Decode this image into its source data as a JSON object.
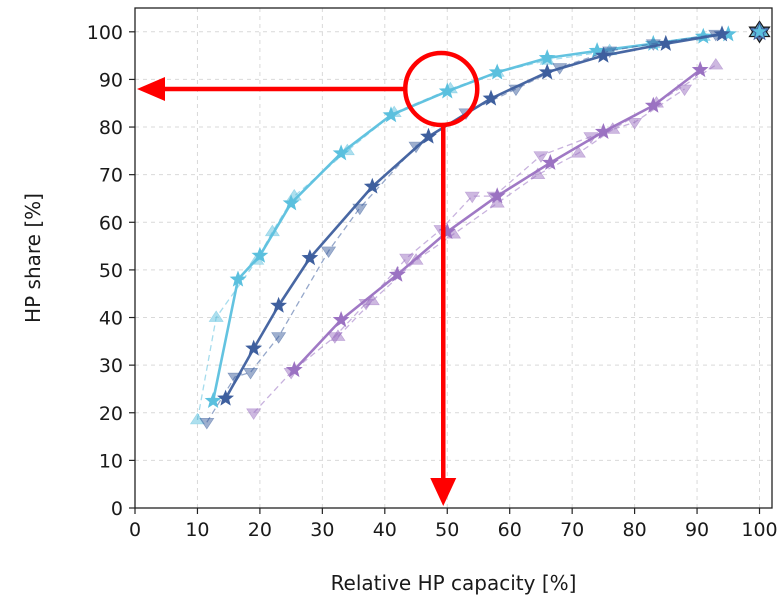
{
  "chart_data": {
    "type": "line",
    "xlabel": "Relative HP capacity [%]",
    "ylabel": "HP share [%]",
    "xlim": [
      0,
      102
    ],
    "ylim": [
      0,
      105
    ],
    "xticks": [
      0,
      10,
      20,
      30,
      40,
      50,
      60,
      70,
      80,
      90,
      100
    ],
    "yticks": [
      0,
      10,
      20,
      30,
      40,
      50,
      60,
      70,
      80,
      90,
      100
    ],
    "grid": true,
    "colors": {
      "light": "#5bc0de",
      "dark": "#3e5f9e",
      "purple": "#9b72c2",
      "annotation": "#ff0000"
    },
    "series": [
      {
        "color": "#5bc0de",
        "style": "solid",
        "marker": "star",
        "x": [
          12.5,
          16.5,
          20,
          25,
          33,
          41,
          50,
          58,
          66,
          74,
          83,
          91,
          95
        ],
        "y": [
          22.5,
          48,
          53,
          64,
          74.5,
          82.5,
          87.5,
          91.5,
          94.5,
          96,
          97.5,
          99,
          99.5
        ]
      },
      {
        "color": "#5bc0de",
        "style": "dashed",
        "marker": "triangle-up",
        "x": [
          10,
          13,
          19.5,
          22,
          25.5,
          34,
          41.5,
          50.5,
          58,
          66,
          76,
          83,
          91
        ],
        "y": [
          18.5,
          40,
          52,
          58,
          65.5,
          75,
          83,
          88,
          91.5,
          94,
          96,
          97.5,
          99
        ]
      },
      {
        "color": "#3e5f9e",
        "style": "solid",
        "marker": "star",
        "x": [
          14.5,
          19,
          23,
          28,
          38,
          47,
          57,
          66,
          75,
          85,
          94
        ],
        "y": [
          23,
          33.5,
          42.5,
          52.5,
          67.5,
          78,
          86,
          91.5,
          95,
          97.5,
          99.5
        ]
      },
      {
        "color": "#3e5f9e",
        "style": "dashed",
        "marker": "triangle-down",
        "x": [
          11.5,
          16,
          18.5,
          23,
          31,
          36,
          45,
          53,
          61,
          68,
          76,
          83,
          93
        ],
        "y": [
          18,
          27.5,
          28.5,
          36,
          54,
          63,
          76,
          83,
          88,
          92.5,
          96,
          97.5,
          99.5
        ]
      },
      {
        "color": "#9b72c2",
        "style": "solid",
        "marker": "star",
        "x": [
          25.5,
          33,
          42,
          50,
          58,
          66.5,
          75,
          83,
          90.5
        ],
        "y": [
          29,
          39.5,
          49,
          58,
          65.5,
          72.5,
          79,
          84.5,
          92
        ]
      },
      {
        "color": "#9b72c2",
        "style": "dashed",
        "marker": "triangle-down",
        "x": [
          19,
          25,
          32,
          37,
          43.5,
          49,
          54,
          57.5,
          65,
          73,
          80,
          88
        ],
        "y": [
          20,
          28.5,
          36,
          43,
          52.5,
          58.5,
          65.5,
          65.5,
          74,
          78,
          81,
          88
        ]
      },
      {
        "color": "#9b72c2",
        "style": "dashed",
        "marker": "triangle-up",
        "x": [
          32.5,
          38,
          45,
          51,
          58,
          64.5,
          71,
          76.5,
          83.5,
          93
        ],
        "y": [
          36,
          43.5,
          52,
          57.5,
          64,
          70,
          74.5,
          79.5,
          85,
          93
        ]
      }
    ],
    "endpoint": {
      "x": 100,
      "y": 100
    },
    "annotation": {
      "circle": {
        "x": 50,
        "y": 88
      },
      "arrow_left_to": {
        "x": 0,
        "y": 88
      },
      "arrow_down_to": {
        "x": 50,
        "y": 0
      }
    }
  }
}
